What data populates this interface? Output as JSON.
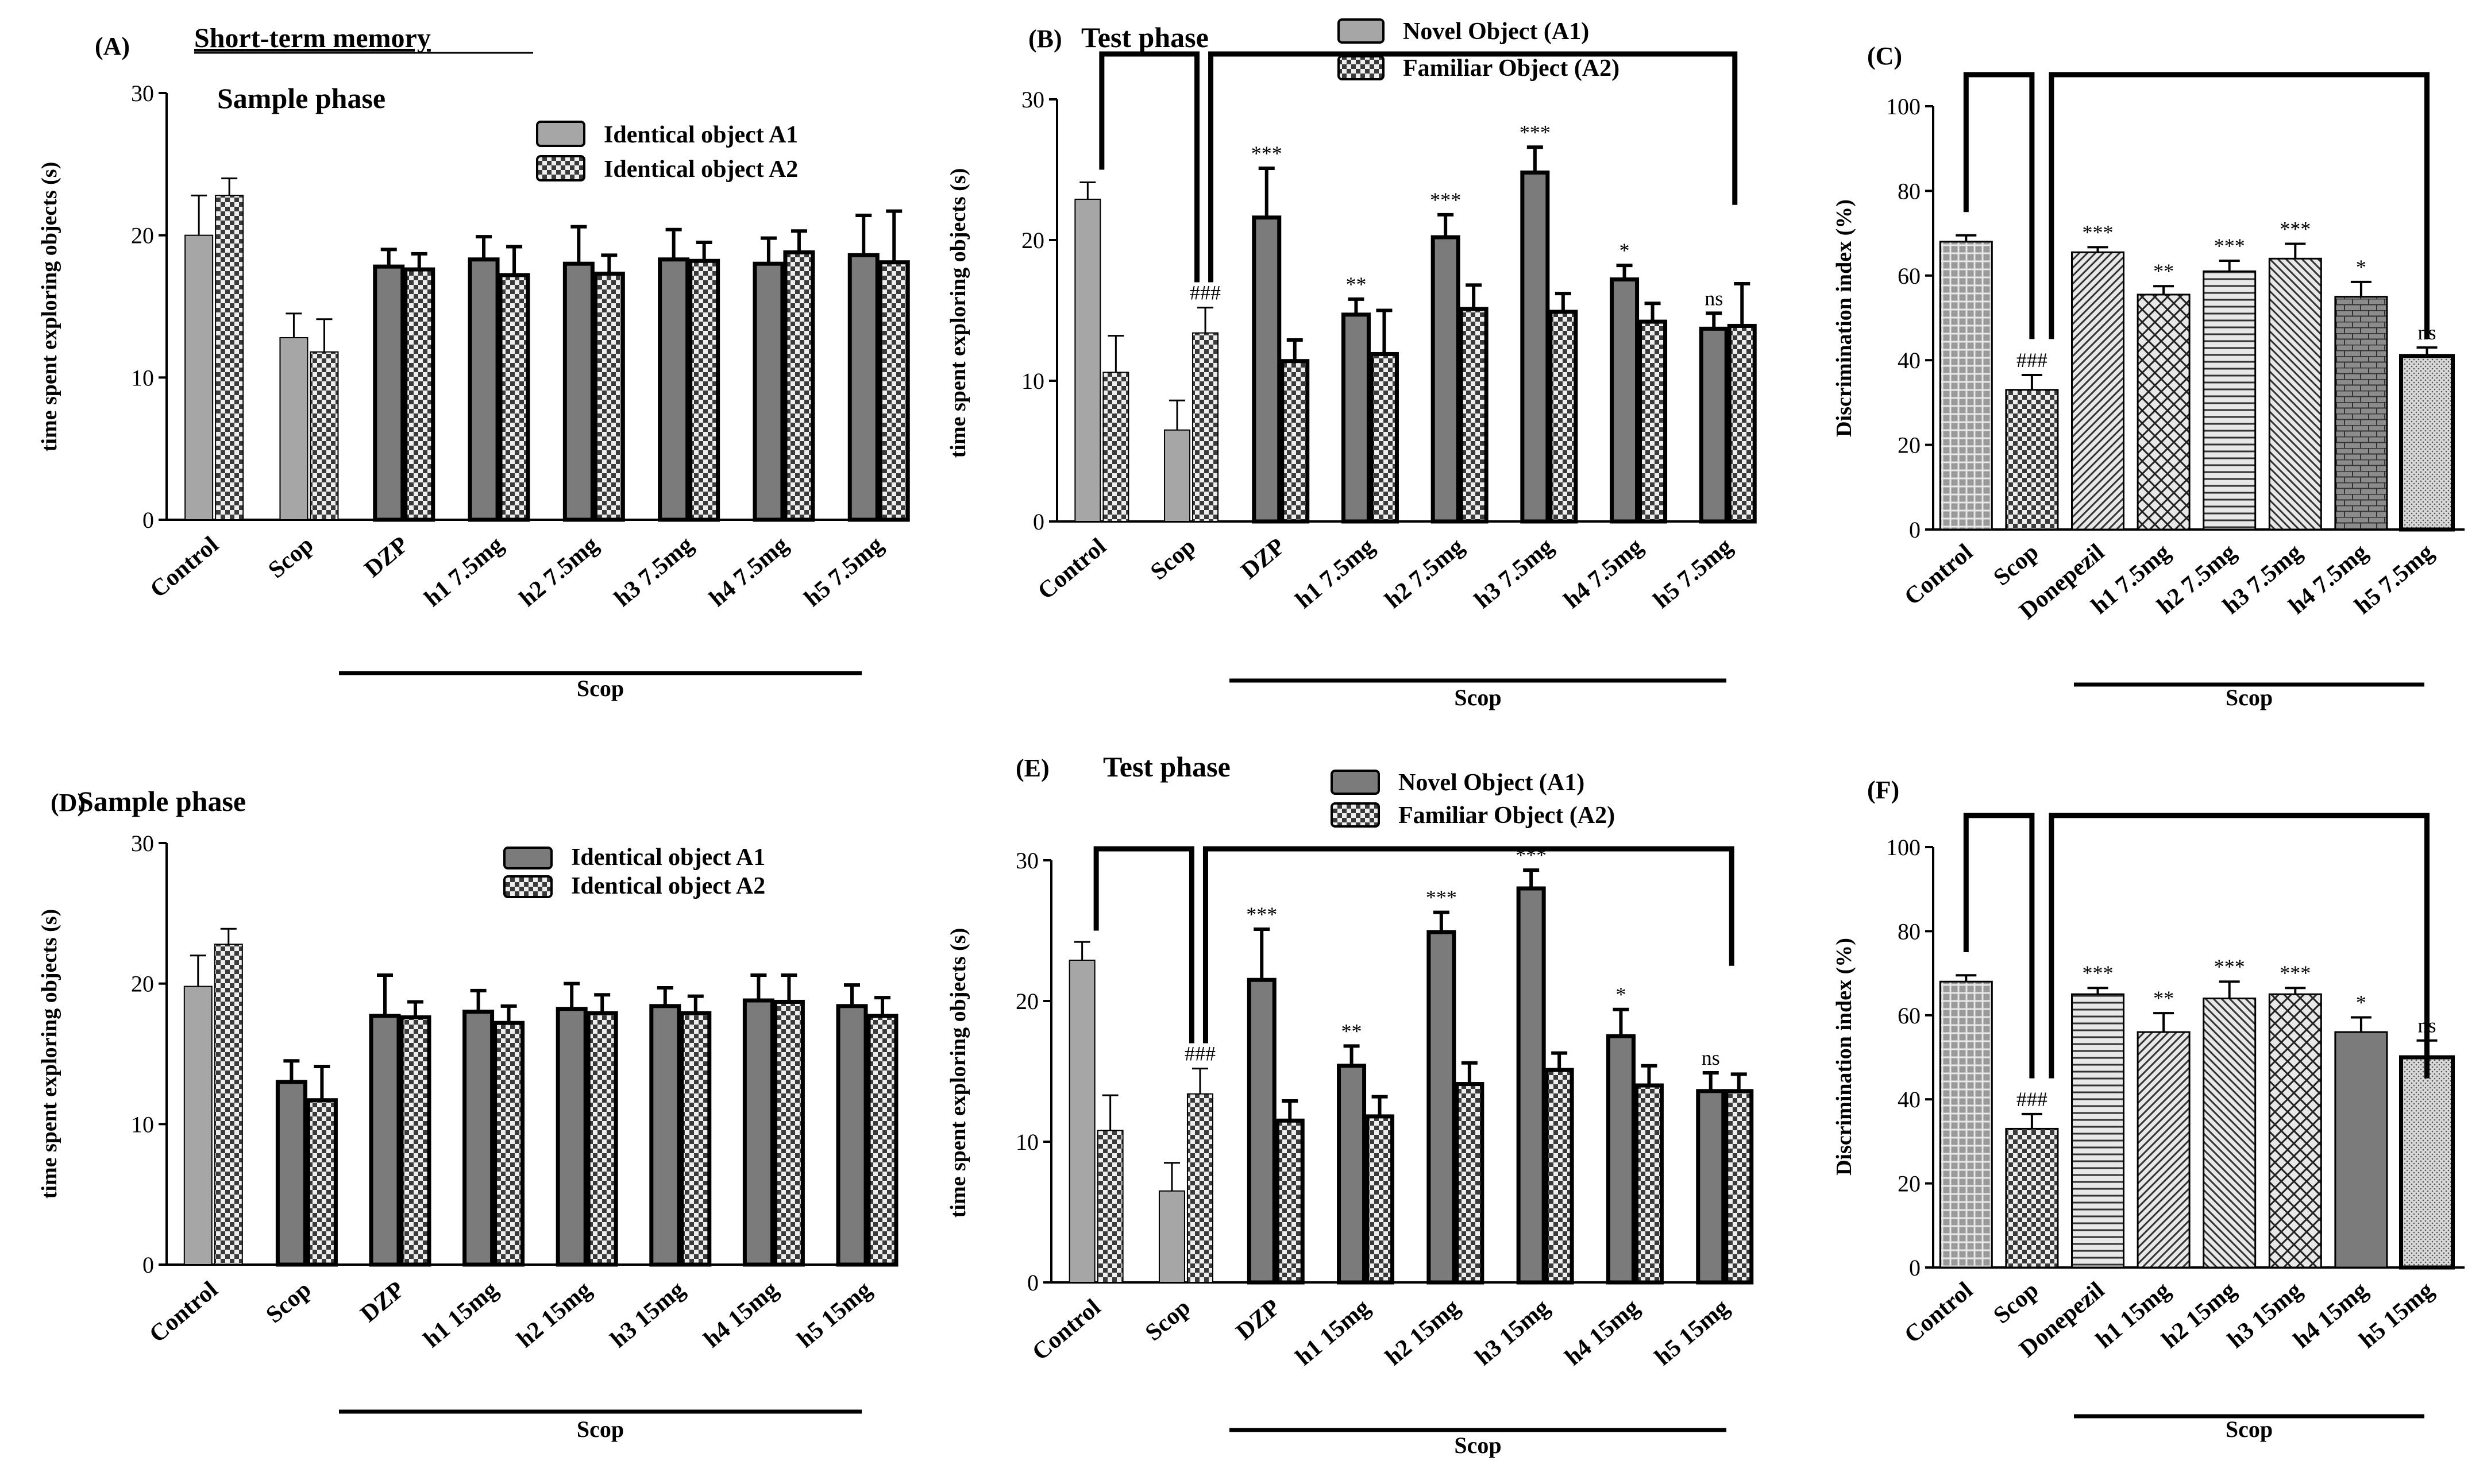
{
  "colors": {
    "light": "#a6a6a6",
    "dark": "#7b7b7b",
    "check": "#3a3a3a",
    "black": "#000000"
  },
  "scop_label": "Scop",
  "chart_data": [
    {
      "id": "A",
      "type": "bar",
      "panel_label": "(A)",
      "header": "Short-term memory",
      "title": "Sample phase",
      "ylabel": "time spent exploring objects (s)",
      "ylim": [
        0,
        30
      ],
      "yticks": [
        0,
        10,
        20,
        30
      ],
      "categories": [
        "Control",
        "Scop",
        "DZP",
        "h1 7.5mg",
        "h2 7.5mg",
        "h3 7.5mg",
        "h4 7.5mg",
        "h5 7.5mg"
      ],
      "series": [
        {
          "name": "Identical object A1",
          "values": [
            20,
            12.8,
            17.8,
            18.3,
            18,
            18.3,
            18,
            18.6
          ],
          "errors": [
            2.8,
            1.7,
            1.2,
            1.6,
            2.6,
            2.1,
            1.8,
            2.8
          ]
        },
        {
          "name": "Identical object A2",
          "values": [
            22.8,
            11.8,
            17.6,
            17.2,
            17.3,
            18.2,
            18.8,
            18.1
          ],
          "errors": [
            1.2,
            2.3,
            1.1,
            2,
            1.3,
            1.3,
            1.5,
            3.6
          ]
        }
      ]
    },
    {
      "id": "B",
      "type": "bar",
      "panel_label": "(B)",
      "title": "Test phase",
      "ylabel": "time spent exploring objects (s)",
      "ylim": [
        0,
        30
      ],
      "yticks": [
        0,
        10,
        20,
        30
      ],
      "categories": [
        "Control",
        "Scop",
        "DZP",
        "h1 7.5mg",
        "h2 7.5mg",
        "h3 7.5mg",
        "h4 7.5mg",
        "h5 7.5mg"
      ],
      "series": [
        {
          "name": "Novel Object (A1)",
          "values": [
            22.9,
            6.5,
            21.6,
            14.7,
            20.2,
            24.8,
            17.2,
            13.7
          ],
          "errors": [
            1.2,
            2.1,
            3.5,
            1.1,
            1.6,
            1.8,
            1,
            1.1
          ]
        },
        {
          "name": "Familiar Object (A2)",
          "values": [
            10.6,
            13.4,
            11.4,
            11.9,
            15.1,
            14.9,
            14.2,
            13.9
          ],
          "errors": [
            2.6,
            1.8,
            1.5,
            3.1,
            1.7,
            1.3,
            1.3,
            3
          ]
        }
      ],
      "annotations": [
        "###",
        "***",
        "**",
        "***",
        "***",
        "*",
        "ns"
      ]
    },
    {
      "id": "C",
      "type": "bar",
      "panel_label": "(C)",
      "ylabel": "Discrimination index (%)",
      "ylim": [
        0,
        100
      ],
      "yticks": [
        0,
        20,
        40,
        60,
        80,
        100
      ],
      "categories": [
        "Control",
        "Scop",
        "Donepezil",
        "h1 7.5mg",
        "h2 7.5mg",
        "h3 7.5mg",
        "h4 7.5mg",
        "h5 7.5mg"
      ],
      "values": [
        68,
        33,
        65.5,
        55.5,
        61,
        64,
        55,
        41
      ],
      "errors": [
        1.5,
        3.5,
        1.2,
        2,
        2.5,
        3.5,
        3.5,
        2
      ],
      "annotations": [
        "###",
        "***",
        "**",
        "***",
        "***",
        "*",
        "ns"
      ]
    },
    {
      "id": "D",
      "type": "bar",
      "panel_label": "(D)",
      "title": "Sample phase",
      "ylabel": "time spent exploring objects (s)",
      "ylim": [
        0,
        30
      ],
      "yticks": [
        0,
        10,
        20,
        30
      ],
      "categories": [
        "Control",
        "Scop",
        "DZP",
        "h1 15mg",
        "h2 15mg",
        "h3 15mg",
        "h4 15mg",
        "h5 15mg"
      ],
      "series": [
        {
          "name": "Identical object A1",
          "values": [
            19.8,
            13,
            17.7,
            18,
            18.2,
            18.4,
            18.8,
            18.4
          ],
          "errors": [
            2.2,
            1.5,
            2.9,
            1.5,
            1.8,
            1.3,
            1.8,
            1.5
          ]
        },
        {
          "name": "Identical object A2",
          "values": [
            22.8,
            11.7,
            17.6,
            17.2,
            17.9,
            17.9,
            18.7,
            17.7
          ],
          "errors": [
            1.1,
            2.4,
            1.1,
            1.2,
            1.3,
            1.2,
            1.9,
            1.3
          ]
        }
      ]
    },
    {
      "id": "E",
      "type": "bar",
      "panel_label": "(E)",
      "title": "Test phase",
      "ylabel": "time spent exploring objects (s)",
      "ylim": [
        0,
        30
      ],
      "yticks": [
        0,
        10,
        20,
        30
      ],
      "categories": [
        "Control",
        "Scop",
        "DZP",
        "h1 15mg",
        "h2 15mg",
        "h3 15mg",
        "h4 15mg",
        "h5 15mg"
      ],
      "series": [
        {
          "name": "Novel Object (A1)",
          "values": [
            22.9,
            6.5,
            21.5,
            15.4,
            24.9,
            28,
            17.5,
            13.6
          ],
          "errors": [
            1.3,
            2,
            3.6,
            1.4,
            1.4,
            1.3,
            1.9,
            1.3
          ]
        },
        {
          "name": "Familiar Object (A2)",
          "values": [
            10.8,
            13.4,
            11.5,
            11.8,
            14.1,
            15.1,
            14,
            13.6
          ],
          "errors": [
            2.5,
            1.8,
            1.4,
            1.4,
            1.5,
            1.2,
            1.4,
            1.2
          ]
        }
      ],
      "annotations": [
        "###",
        "***",
        "**",
        "***",
        "***",
        "*",
        "ns"
      ]
    },
    {
      "id": "F",
      "type": "bar",
      "panel_label": "(F)",
      "ylabel": "Discrimination index (%)",
      "ylim": [
        0,
        100
      ],
      "yticks": [
        0,
        20,
        40,
        60,
        80,
        100
      ],
      "categories": [
        "Control",
        "Scop",
        "Donepezil",
        "h1 15mg",
        "h2 15mg",
        "h3 15mg",
        "h4 15mg",
        "h5 15mg"
      ],
      "values": [
        68,
        33,
        65,
        56,
        64,
        65,
        56,
        50
      ],
      "errors": [
        1.5,
        3.5,
        1.5,
        4.5,
        4,
        1.5,
        3.5,
        4
      ],
      "annotations": [
        "###",
        "***",
        "**",
        "***",
        "***",
        "*",
        "ns"
      ]
    }
  ]
}
